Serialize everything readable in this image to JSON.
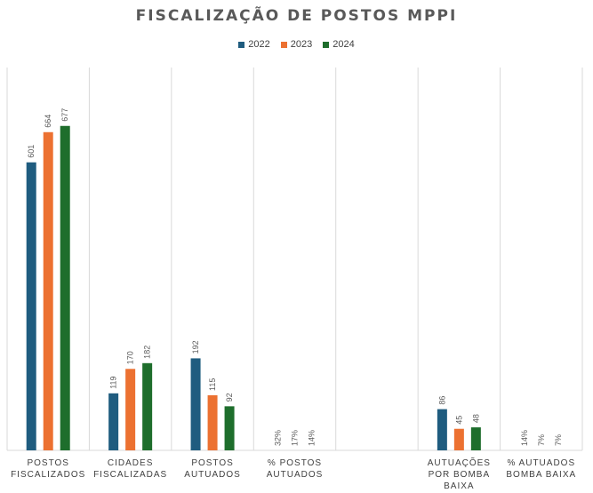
{
  "chart_data": {
    "type": "bar",
    "title": "FISCALIZAÇÃO DE POSTOS MPPI",
    "categories": [
      [
        "POSTOS",
        "FISCALIZADOS"
      ],
      [
        "CIDADES",
        "FISCALIZADAS"
      ],
      [
        "POSTOS",
        "AUTUADOS"
      ],
      [
        "% POSTOS",
        "AUTUADOS"
      ],
      [
        "",
        ""
      ],
      [
        "AUTUAÇÕES",
        "POR BOMBA",
        "BAIXA"
      ],
      [
        "% AUTUADOS",
        "BOMBA BAIXA"
      ]
    ],
    "series": [
      {
        "name": "2022",
        "color": "#1f5c7f",
        "values": [
          601,
          119,
          192,
          32,
          null,
          86,
          14
        ],
        "labels": [
          "601",
          "119",
          "192",
          "32%",
          "",
          "86",
          "14%"
        ]
      },
      {
        "name": "2023",
        "color": "#ec7131",
        "values": [
          664,
          170,
          115,
          17,
          null,
          45,
          7
        ],
        "labels": [
          "664",
          "170",
          "115",
          "17%",
          "",
          "45",
          "7%"
        ]
      },
      {
        "name": "2024",
        "color": "#1e6e2c",
        "values": [
          677,
          182,
          92,
          14,
          null,
          48,
          7
        ],
        "labels": [
          "677",
          "182",
          "92",
          "14%",
          "",
          "48",
          "7%"
        ]
      }
    ],
    "percent_categories": [
      3,
      6
    ],
    "ylim": [
      0,
      800
    ],
    "grid": false,
    "legend_position": "top"
  }
}
